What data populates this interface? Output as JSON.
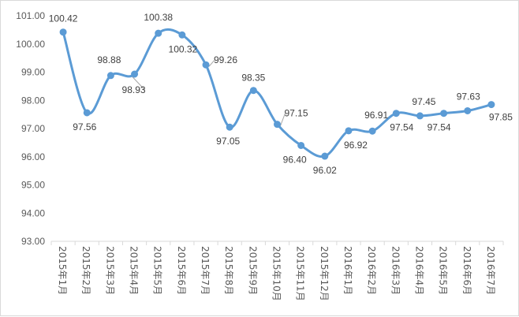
{
  "chart_data": {
    "type": "line",
    "title": "",
    "xlabel": "",
    "ylabel": "",
    "ylim": [
      93.0,
      101.0
    ],
    "y_ticks": [
      "93.00",
      "94.00",
      "95.00",
      "96.00",
      "97.00",
      "98.00",
      "99.00",
      "100.00",
      "101.00"
    ],
    "grid": false,
    "legend": "none",
    "smooth": true,
    "line_color": "#5b9bd5",
    "categories": [
      "2015年1月",
      "2015年2月",
      "2015年3月",
      "2015年4月",
      "2015年5月",
      "2015年6月",
      "2015年7月",
      "2015年8月",
      "2015年9月",
      "2015年10月",
      "2015年11月",
      "2015年12月",
      "2016年1月",
      "2016年2月",
      "2016年3月",
      "2016年4月",
      "2016年5月",
      "2016年6月",
      "2016年7月"
    ],
    "series": [
      {
        "values": [
          100.42,
          97.56,
          98.88,
          98.93,
          100.38,
          100.32,
          99.26,
          97.05,
          98.35,
          97.15,
          96.4,
          96.02,
          96.92,
          96.91,
          97.54,
          97.45,
          97.54,
          97.63,
          97.85
        ],
        "labels": [
          "100.42",
          "97.56",
          "98.88",
          "98.93",
          "100.38",
          "100.32",
          "99.26",
          "97.05",
          "98.35",
          "97.15",
          "96.40",
          "96.02",
          "96.92",
          "96.91",
          "97.54",
          "97.45",
          "97.54",
          "97.63",
          "97.85"
        ]
      }
    ]
  }
}
